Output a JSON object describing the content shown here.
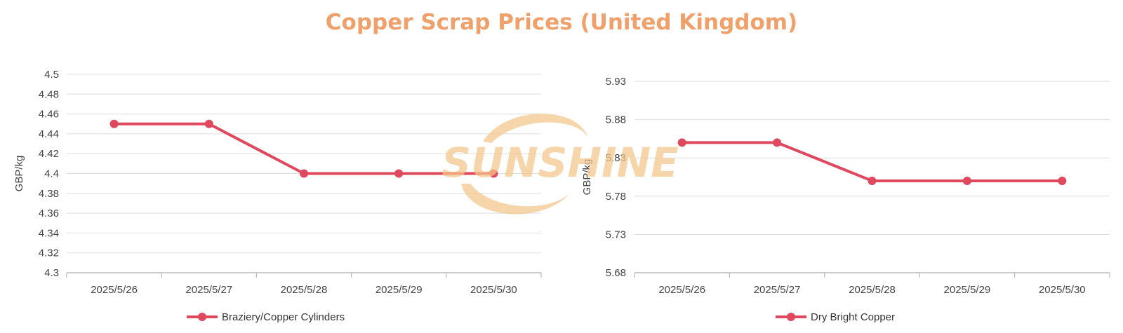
{
  "title": "Copper Scrap Prices (United Kingdom)",
  "colors": {
    "title": "#F0A06A",
    "series": "#E0485E",
    "grid": "#DDDDDD",
    "axis": "#BBBBBB",
    "watermark": "#F5C58A"
  },
  "watermark": {
    "text": "SUNSHINE"
  },
  "chart_data": [
    {
      "type": "line",
      "categories": [
        "2025/5/26",
        "2025/5/27",
        "2025/5/28",
        "2025/5/29",
        "2025/5/30"
      ],
      "series": [
        {
          "name": "Braziery/Copper Cylinders",
          "values": [
            4.45,
            4.45,
            4.4,
            4.4,
            4.4
          ]
        }
      ],
      "ylabel": "GBP/kg",
      "ylim": [
        4.3,
        4.5
      ],
      "yticks": [
        "4.5",
        "4.48",
        "4.46",
        "4.44",
        "4.42",
        "4.4",
        "4.38",
        "4.36",
        "4.34",
        "4.32",
        "4.3"
      ],
      "grid": true,
      "legend": "bottom"
    },
    {
      "type": "line",
      "categories": [
        "2025/5/26",
        "2025/5/27",
        "2025/5/28",
        "2025/5/29",
        "2025/5/30"
      ],
      "series": [
        {
          "name": "Dry Bright Copper",
          "values": [
            5.85,
            5.85,
            5.8,
            5.8,
            5.8
          ]
        }
      ],
      "ylabel": "GBP/kg",
      "ylim": [
        5.68,
        5.93
      ],
      "yticks": [
        "5.93",
        "5.88",
        "5.83",
        "5.78",
        "5.73",
        "5.68"
      ],
      "grid": true,
      "legend": "bottom"
    }
  ]
}
